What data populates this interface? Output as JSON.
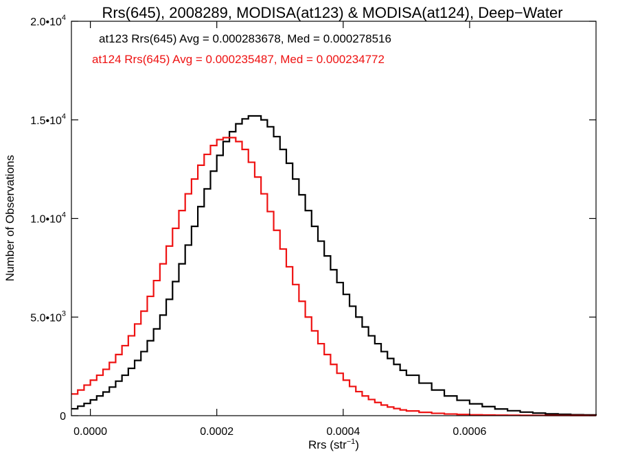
{
  "chart_data": {
    "type": "line",
    "title": "Rrs(645), 2008289, MODISA(at123) & MODISA(at124), Deep−Water",
    "xlabel": {
      "base": "Rrs (str",
      "sup": "−1",
      "tail": ")"
    },
    "ylabel": "Number of Observations",
    "xlim": [
      -3e-05,
      0.0008
    ],
    "ylim": [
      0,
      20000
    ],
    "x_ticks": [
      0.0,
      0.0002,
      0.0004,
      0.0006
    ],
    "x_tick_labels": [
      "0.0000",
      "0.0002",
      "0.0004",
      "0.0006"
    ],
    "y_ticks": [
      {
        "value": 0,
        "mantissa": "0",
        "exp": ""
      },
      {
        "value": 5000,
        "mantissa": "5.0•10",
        "exp": "3"
      },
      {
        "value": 10000,
        "mantissa": "1.0•10",
        "exp": "4"
      },
      {
        "value": 15000,
        "mantissa": "1.5•10",
        "exp": "4"
      },
      {
        "value": 20000,
        "mantissa": "2.0•10",
        "exp": "4"
      }
    ],
    "grid": false,
    "step": true,
    "annotations": [
      {
        "text": "at123 Rrs(645) Avg = 0.000283678, Med = 0.000278516",
        "color": "#000000"
      },
      {
        "text": "at124 Rrs(645) Avg = 0.000235487, Med = 0.000234772",
        "color": "#ee1111"
      }
    ],
    "series": [
      {
        "color": "#000000",
        "x": [
          -3e-05,
          -2e-05,
          -1e-05,
          0.0,
          1e-05,
          2e-05,
          3e-05,
          4e-05,
          5e-05,
          6e-05,
          7e-05,
          8e-05,
          9e-05,
          0.0001,
          0.00011,
          0.00012,
          0.00013,
          0.00014,
          0.00015,
          0.00016,
          0.00017,
          0.00018,
          0.00019,
          0.0002,
          0.00021,
          0.00022,
          0.00023,
          0.00024,
          0.00025,
          0.00026,
          0.00027,
          0.00028,
          0.00029,
          0.0003,
          0.00031,
          0.00032,
          0.00033,
          0.00034,
          0.00035,
          0.00036,
          0.00037,
          0.00038,
          0.00039,
          0.0004,
          0.00041,
          0.00042,
          0.00043,
          0.00044,
          0.00045,
          0.00046,
          0.00047,
          0.00048,
          0.00049,
          0.0005,
          0.00052,
          0.00054,
          0.00056,
          0.00058,
          0.0006,
          0.00062,
          0.00064,
          0.00066,
          0.00068,
          0.0007,
          0.00072,
          0.00074,
          0.00076,
          0.00078,
          0.0008
        ],
        "y": [
          350,
          480,
          620,
          800,
          1000,
          1200,
          1450,
          1750,
          2050,
          2400,
          2800,
          3250,
          3800,
          4400,
          5100,
          5900,
          6800,
          7700,
          8650,
          9600,
          10600,
          11500,
          12400,
          13200,
          13900,
          14400,
          14800,
          15050,
          15200,
          15200,
          15000,
          14650,
          14150,
          13500,
          12800,
          12000,
          11200,
          10400,
          9600,
          8850,
          8100,
          7400,
          6750,
          6150,
          5550,
          5000,
          4500,
          4050,
          3650,
          3250,
          2900,
          2600,
          2300,
          2050,
          1650,
          1300,
          1000,
          780,
          600,
          460,
          340,
          250,
          180,
          130,
          90,
          70,
          50,
          40,
          30
        ]
      },
      {
        "color": "#ee1111",
        "x": [
          -3e-05,
          -2e-05,
          -1e-05,
          0.0,
          1e-05,
          2e-05,
          3e-05,
          4e-05,
          5e-05,
          6e-05,
          7e-05,
          8e-05,
          9e-05,
          0.0001,
          0.00011,
          0.00012,
          0.00013,
          0.00014,
          0.00015,
          0.00016,
          0.00017,
          0.00018,
          0.00019,
          0.0002,
          0.00021,
          0.00022,
          0.00023,
          0.00024,
          0.00025,
          0.00026,
          0.00027,
          0.00028,
          0.00029,
          0.0003,
          0.00031,
          0.00032,
          0.00033,
          0.00034,
          0.00035,
          0.00036,
          0.00037,
          0.00038,
          0.00039,
          0.0004,
          0.00041,
          0.00042,
          0.00043,
          0.00044,
          0.00045,
          0.00046,
          0.00047,
          0.00048,
          0.00049,
          0.0005,
          0.00052,
          0.00054,
          0.00056,
          0.00058,
          0.0006,
          0.00062,
          0.00064,
          0.00066,
          0.00068,
          0.0007,
          0.00072,
          0.00074,
          0.00076,
          0.00078,
          0.0008
        ],
        "y": [
          1100,
          1300,
          1550,
          1800,
          2050,
          2350,
          2700,
          3100,
          3550,
          4050,
          4650,
          5300,
          6050,
          6850,
          7700,
          8600,
          9500,
          10400,
          11250,
          12000,
          12700,
          13250,
          13700,
          14000,
          14100,
          14100,
          13900,
          13500,
          12850,
          12100,
          11250,
          10350,
          9400,
          8450,
          7550,
          6650,
          5800,
          5000,
          4300,
          3650,
          3100,
          2600,
          2150,
          1800,
          1480,
          1220,
          1000,
          820,
          670,
          540,
          440,
          360,
          290,
          240,
          170,
          120,
          85,
          60,
          45,
          35,
          28,
          22,
          18,
          15,
          12,
          10,
          8,
          6,
          5
        ]
      }
    ]
  }
}
